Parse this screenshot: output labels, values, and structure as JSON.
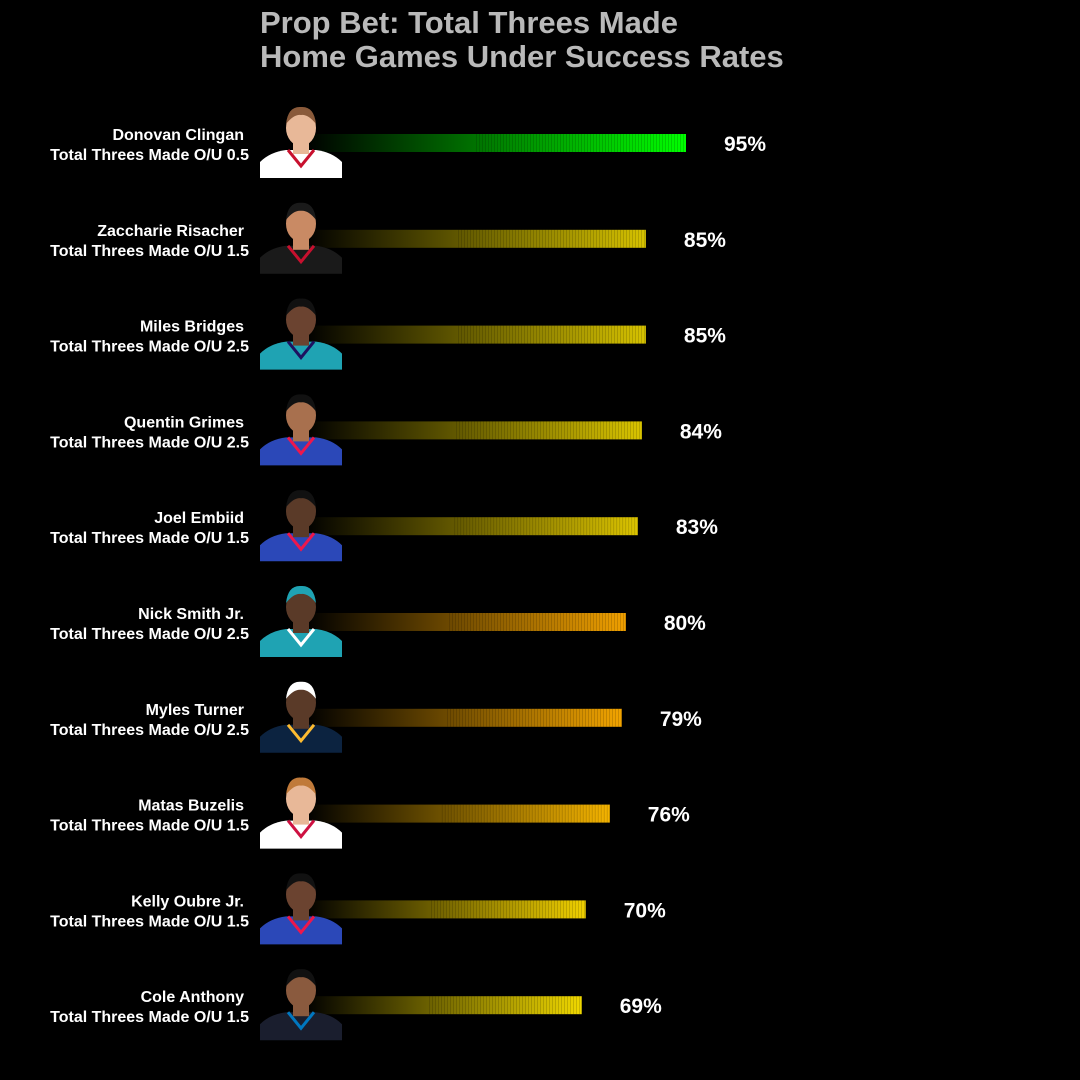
{
  "title_line1": "Prop Bet: Total Threes Made",
  "title_line2": "Home Games Under Success Rates",
  "chart_data": {
    "type": "bar",
    "orientation": "horizontal",
    "title": "Prop Bet: Total Threes Made\nHome Games Under Success Rates",
    "value_format": "percent",
    "xlim": [
      0,
      100
    ],
    "grid": false,
    "bar_fill": "gradient, black to color",
    "categories": [
      {
        "player": "Donovan Clingan",
        "line": "Total Threes Made O/U 0.5",
        "value": 95,
        "color": "#00ff00",
        "avatar": "player-headshot",
        "jersey_color": "#ffffff",
        "jersey_trim": "#c8102e",
        "skin": "#e8b898",
        "hair": "#8a5a3a"
      },
      {
        "player": "Zaccharie Risacher",
        "line": "Total Threes Made O/U 1.5",
        "value": 85,
        "color": "#d6c200",
        "avatar": "player-headshot",
        "jersey_color": "#1a1a1a",
        "jersey_trim": "#c8102e",
        "skin": "#c98a64",
        "hair": "#1a1a1a"
      },
      {
        "player": "Miles Bridges",
        "line": "Total Threes Made O/U 2.5",
        "value": 85,
        "color": "#d6c200",
        "avatar": "player-headshot",
        "jersey_color": "#1fa3b3",
        "jersey_trim": "#1d1160",
        "skin": "#6b4330",
        "hair": "#111111"
      },
      {
        "player": "Quentin Grimes",
        "line": "Total Threes Made O/U 2.5",
        "value": 84,
        "color": "#d9c400",
        "avatar": "player-headshot",
        "jersey_color": "#2b48b8",
        "jersey_trim": "#ed174c",
        "skin": "#a8704e",
        "hair": "#111111"
      },
      {
        "player": "Joel Embiid",
        "line": "Total Threes Made O/U 1.5",
        "value": 83,
        "color": "#dcc400",
        "avatar": "player-headshot",
        "jersey_color": "#2b48b8",
        "jersey_trim": "#ed174c",
        "skin": "#5a3a28",
        "hair": "#111111"
      },
      {
        "player": "Nick Smith Jr.",
        "line": "Total Threes Made O/U 2.5",
        "value": 80,
        "color": "#f0a000",
        "avatar": "player-headshot",
        "jersey_color": "#1fa3b3",
        "jersey_trim": "#ffffff",
        "skin": "#5a3a28",
        "hair": "#1fa3b3"
      },
      {
        "player": "Myles Turner",
        "line": "Total Threes Made O/U 2.5",
        "value": 79,
        "color": "#f2a400",
        "avatar": "player-headshot",
        "jersey_color": "#0c2340",
        "jersey_trim": "#fdbb30",
        "skin": "#5a3a28",
        "hair": "#ffffff"
      },
      {
        "player": "Matas Buzelis",
        "line": "Total Threes Made O/U 1.5",
        "value": 76,
        "color": "#f5b400",
        "avatar": "player-headshot",
        "jersey_color": "#ffffff",
        "jersey_trim": "#ce1141",
        "skin": "#e8b898",
        "hair": "#c07a3a"
      },
      {
        "player": "Kelly Oubre Jr.",
        "line": "Total Threes Made O/U 1.5",
        "value": 70,
        "color": "#f0d000",
        "avatar": "player-headshot",
        "jersey_color": "#2b48b8",
        "jersey_trim": "#ed174c",
        "skin": "#6b4330",
        "hair": "#111111"
      },
      {
        "player": "Cole Anthony",
        "line": "Total Threes Made O/U 1.5",
        "value": 69,
        "color": "#f0d800",
        "avatar": "player-headshot",
        "jersey_color": "#1a1e2e",
        "jersey_trim": "#0077c0",
        "skin": "#8a5a3e",
        "hair": "#111111"
      }
    ]
  }
}
